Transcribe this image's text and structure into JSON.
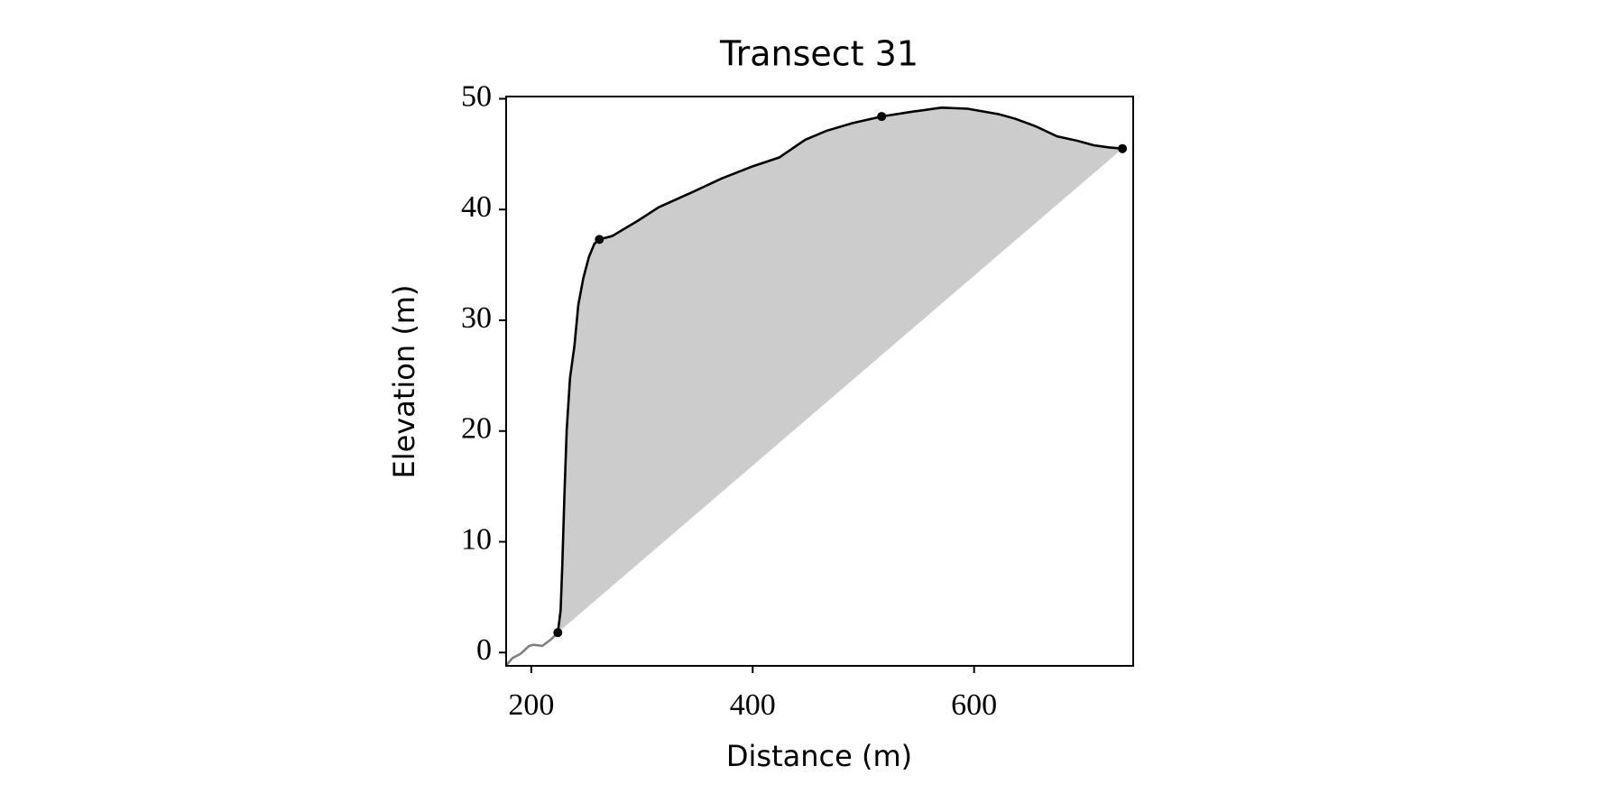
{
  "chart_data": {
    "type": "line",
    "title": "Transect 31",
    "x_label": "Distance (m)",
    "y_label": "Elevation (m)",
    "x": [
      177,
      183,
      190.5,
      198,
      202,
      210,
      218,
      224,
      226.5,
      228,
      230,
      232,
      235,
      239,
      242.5,
      247,
      252,
      257,
      261.5,
      273,
      296.5,
      315,
      344,
      372,
      400,
      424,
      447.5,
      466.5,
      490,
      516.5,
      542,
      570.5,
      594,
      622.5,
      637,
      656,
      675,
      693.6,
      708,
      722,
      734,
      743.7
    ],
    "series": [
      {
        "color": "#808080",
        "values": [
          -1.2,
          -0.5,
          -0.1,
          0.6,
          0.7,
          0.6,
          1.2,
          1.8,
          null,
          null,
          null,
          null,
          null,
          null,
          null,
          null,
          null,
          null,
          null,
          null,
          null,
          null,
          null,
          null,
          null,
          null,
          null,
          null,
          null,
          null,
          null,
          null,
          null,
          null,
          null,
          null,
          null,
          null,
          null,
          null,
          null,
          null
        ]
      },
      {
        "color": "#000000",
        "values": [
          null,
          null,
          null,
          null,
          null,
          null,
          null,
          1.8,
          3.8,
          7.8,
          14.4,
          20.1,
          24.8,
          27.7,
          31.4,
          33.8,
          35.7,
          36.9,
          37.3,
          37.6,
          39.0,
          40.2,
          41.5,
          42.8,
          43.9,
          44.7,
          46.3,
          47.1,
          47.8,
          48.4,
          48.8,
          49.2,
          49.1,
          48.6,
          48.2,
          47.5,
          46.6,
          46.2,
          45.8,
          45.6,
          45.5,
          null
        ]
      }
    ],
    "points": {
      "color": "#000000",
      "x": [
        224,
        261.5,
        516.5,
        734
      ],
      "y": [
        1.8,
        37.3,
        48.4,
        45.5
      ]
    },
    "fill_color": "#cccccc",
    "xlim": [
      177.3,
      743.7
    ],
    "ylim": [
      -1.2,
      50.2
    ],
    "xticks": [
      200,
      400,
      600
    ],
    "yticks": [
      0,
      10,
      20,
      30,
      40,
      50
    ]
  }
}
